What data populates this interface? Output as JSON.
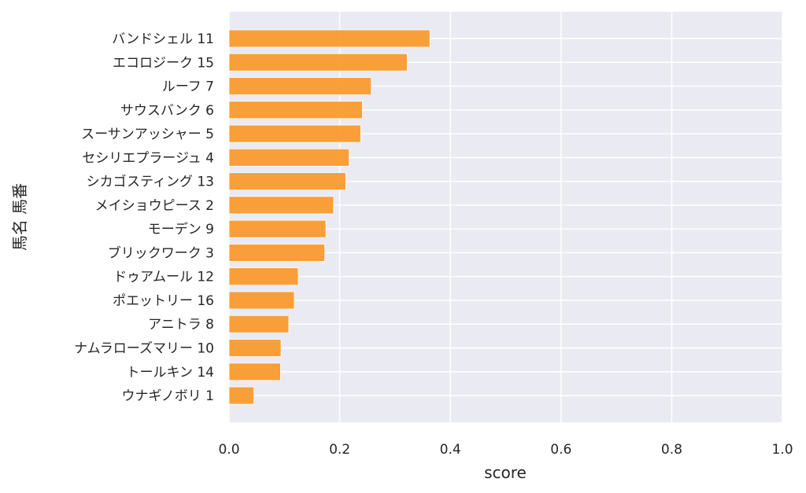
{
  "chart_data": {
    "type": "bar",
    "orientation": "horizontal",
    "title": "",
    "xlabel": "score",
    "ylabel": "馬名 馬番",
    "xlim": [
      0,
      1.0
    ],
    "xticks": [
      "0.0",
      "0.2",
      "0.4",
      "0.6",
      "0.8",
      "1.0"
    ],
    "grid": true,
    "bar_color": "#fa9b2e",
    "background_color": "#eaeaf2",
    "categories": [
      "バンドシェル 11",
      "エコロジーク 15",
      "ルーフ 7",
      "サウスバンク 6",
      "スーサンアッシャー 5",
      "セシリエプラージュ 4",
      "シカゴスティング 13",
      "メイショウピース 2",
      "モーデン 9",
      "ブリックワーク 3",
      "ドゥアムール 12",
      "ポエットリー 16",
      "アニトラ 8",
      "ナムラローズマリー 10",
      "トールキン 14",
      "ウナギノボリ 1"
    ],
    "values": [
      0.363,
      0.322,
      0.257,
      0.241,
      0.238,
      0.217,
      0.211,
      0.189,
      0.175,
      0.173,
      0.125,
      0.118,
      0.108,
      0.094,
      0.093,
      0.045
    ]
  }
}
